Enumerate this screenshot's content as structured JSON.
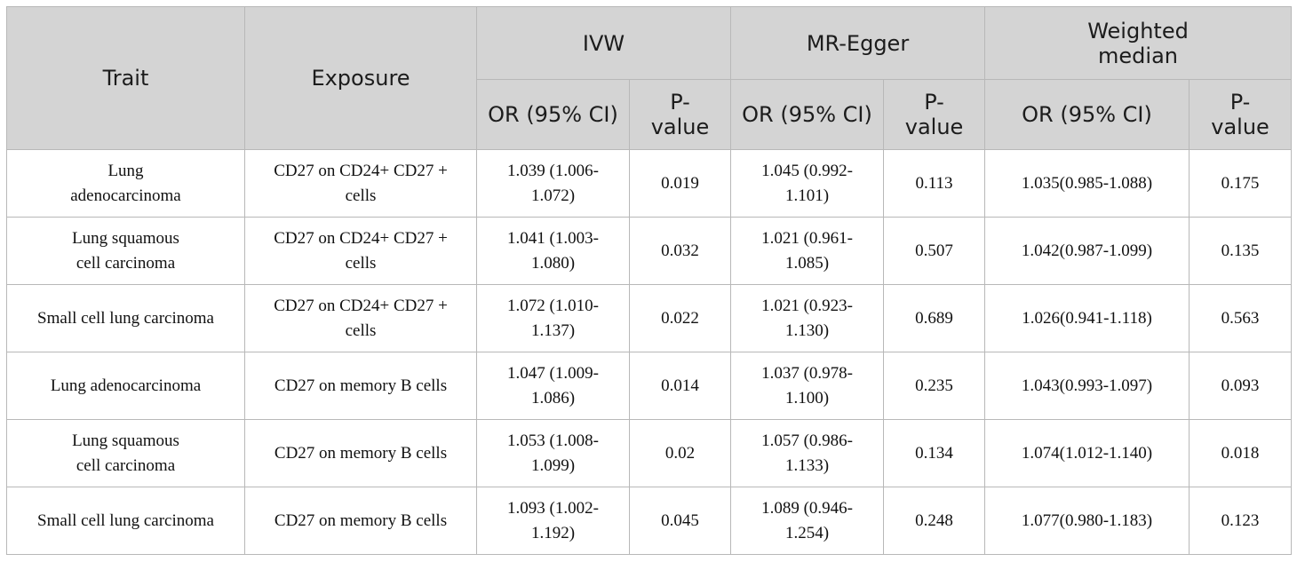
{
  "table": {
    "headers": {
      "trait": "Trait",
      "exposure": "Exposure",
      "ivw": "IVW",
      "mr_egger": "MR-Egger",
      "weighted_median": "Weighted median",
      "or_ci": "OR (95% CI)",
      "p_value": "P-value"
    },
    "rows": [
      {
        "trait": "Lung adenocarcinoma",
        "exposure": "CD27 on CD24+ CD27 + cells",
        "ivw_or": "1.039 (1.006-1.072)",
        "ivw_p": "0.019",
        "egger_or": "1.045 (0.992-1.101)",
        "egger_p": "0.113",
        "wm_or": "1.035(0.985-1.088)",
        "wm_p": "0.175"
      },
      {
        "trait": "Lung squamous cell carcinoma",
        "exposure": "CD27 on CD24+ CD27 + cells",
        "ivw_or": "1.041 (1.003-1.080)",
        "ivw_p": "0.032",
        "egger_or": "1.021 (0.961-1.085)",
        "egger_p": "0.507",
        "wm_or": "1.042(0.987-1.099)",
        "wm_p": "0.135"
      },
      {
        "trait": "Small cell lung carcinoma",
        "exposure": "CD27 on CD24+ CD27 + cells",
        "ivw_or": "1.072 (1.010-1.137)",
        "ivw_p": "0.022",
        "egger_or": "1.021 (0.923-1.130)",
        "egger_p": "0.689",
        "wm_or": "1.026(0.941-1.118)",
        "wm_p": "0.563"
      },
      {
        "trait": "Lung adenocarcinoma",
        "exposure": "CD27 on memory B cells",
        "ivw_or": "1.047 (1.009-1.086)",
        "ivw_p": "0.014",
        "egger_or": "1.037 (0.978-1.100)",
        "egger_p": "0.235",
        "wm_or": "1.043(0.993-1.097)",
        "wm_p": "0.093"
      },
      {
        "trait": "Lung squamous cell carcinoma",
        "exposure": "CD27 on memory B cells",
        "ivw_or": "1.053 (1.008-1.099)",
        "ivw_p": "0.02",
        "egger_or": "1.057 (0.986-1.133)",
        "egger_p": "0.134",
        "wm_or": "1.074(1.012-1.140)",
        "wm_p": "0.018"
      },
      {
        "trait": "Small cell lung carcinoma",
        "exposure": "CD27 on memory B cells",
        "ivw_or": "1.093 (1.002-1.192)",
        "ivw_p": "0.045",
        "egger_or": "1.089 (0.946-1.254)",
        "egger_p": "0.248",
        "wm_or": "1.077(0.980-1.183)",
        "wm_p": "0.123"
      }
    ]
  }
}
